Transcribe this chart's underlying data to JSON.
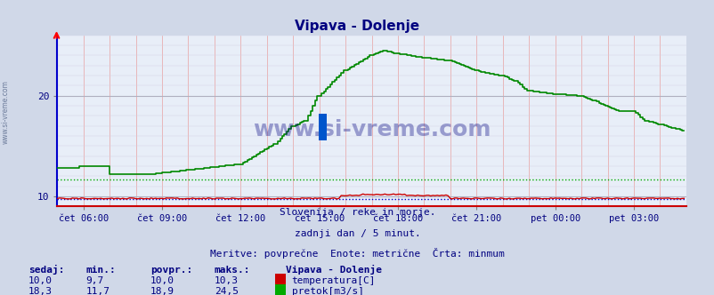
{
  "title": "Vipava - Dolenje",
  "title_color": "#000080",
  "bg_color": "#d0d8e8",
  "plot_bg_color": "#e8eef8",
  "ylabel_color": "#000080",
  "xlabel_color": "#000080",
  "watermark": "www.si-vreme.com",
  "watermark_color": "#000080",
  "subtitle1": "Slovenija / reke in morje.",
  "subtitle2": "zadnji dan / 5 minut.",
  "subtitle3": "Meritve: povprečne  Enote: metrične  Črta: minmum",
  "subtitle_color": "#000080",
  "legend_title": "Vipava - Dolenje",
  "legend_items": [
    {
      "label": "temperatura[C]",
      "color": "#cc0000"
    },
    {
      "label": "pretok[m3/s]",
      "color": "#00aa00"
    }
  ],
  "table_headers": [
    "sedaj:",
    "min.:",
    "povpr.:",
    "maks.:"
  ],
  "table_rows": [
    [
      "10,0",
      "9,7",
      "10,0",
      "10,3"
    ],
    [
      "18,3",
      "11,7",
      "18,9",
      "24,5"
    ]
  ],
  "table_color": "#000080",
  "xticklabels": [
    "čet 06:00",
    "čet 09:00",
    "čet 12:00",
    "čet 15:00",
    "čet 18:00",
    "čet 21:00",
    "pet 00:00",
    "pet 03:00"
  ],
  "yticks": [
    10,
    20
  ],
  "ylim": [
    9.0,
    26.0
  ],
  "xlim": [
    0,
    288
  ],
  "temp_color": "#cc0000",
  "flow_color": "#008800",
  "flow_min_color": "#00aa00",
  "temp_min_color": "#0000cc",
  "left_spine_color": "#0000cc",
  "bottom_spine_color": "#cc0000",
  "temp_min_val": 9.7,
  "flow_min_val": 11.7
}
